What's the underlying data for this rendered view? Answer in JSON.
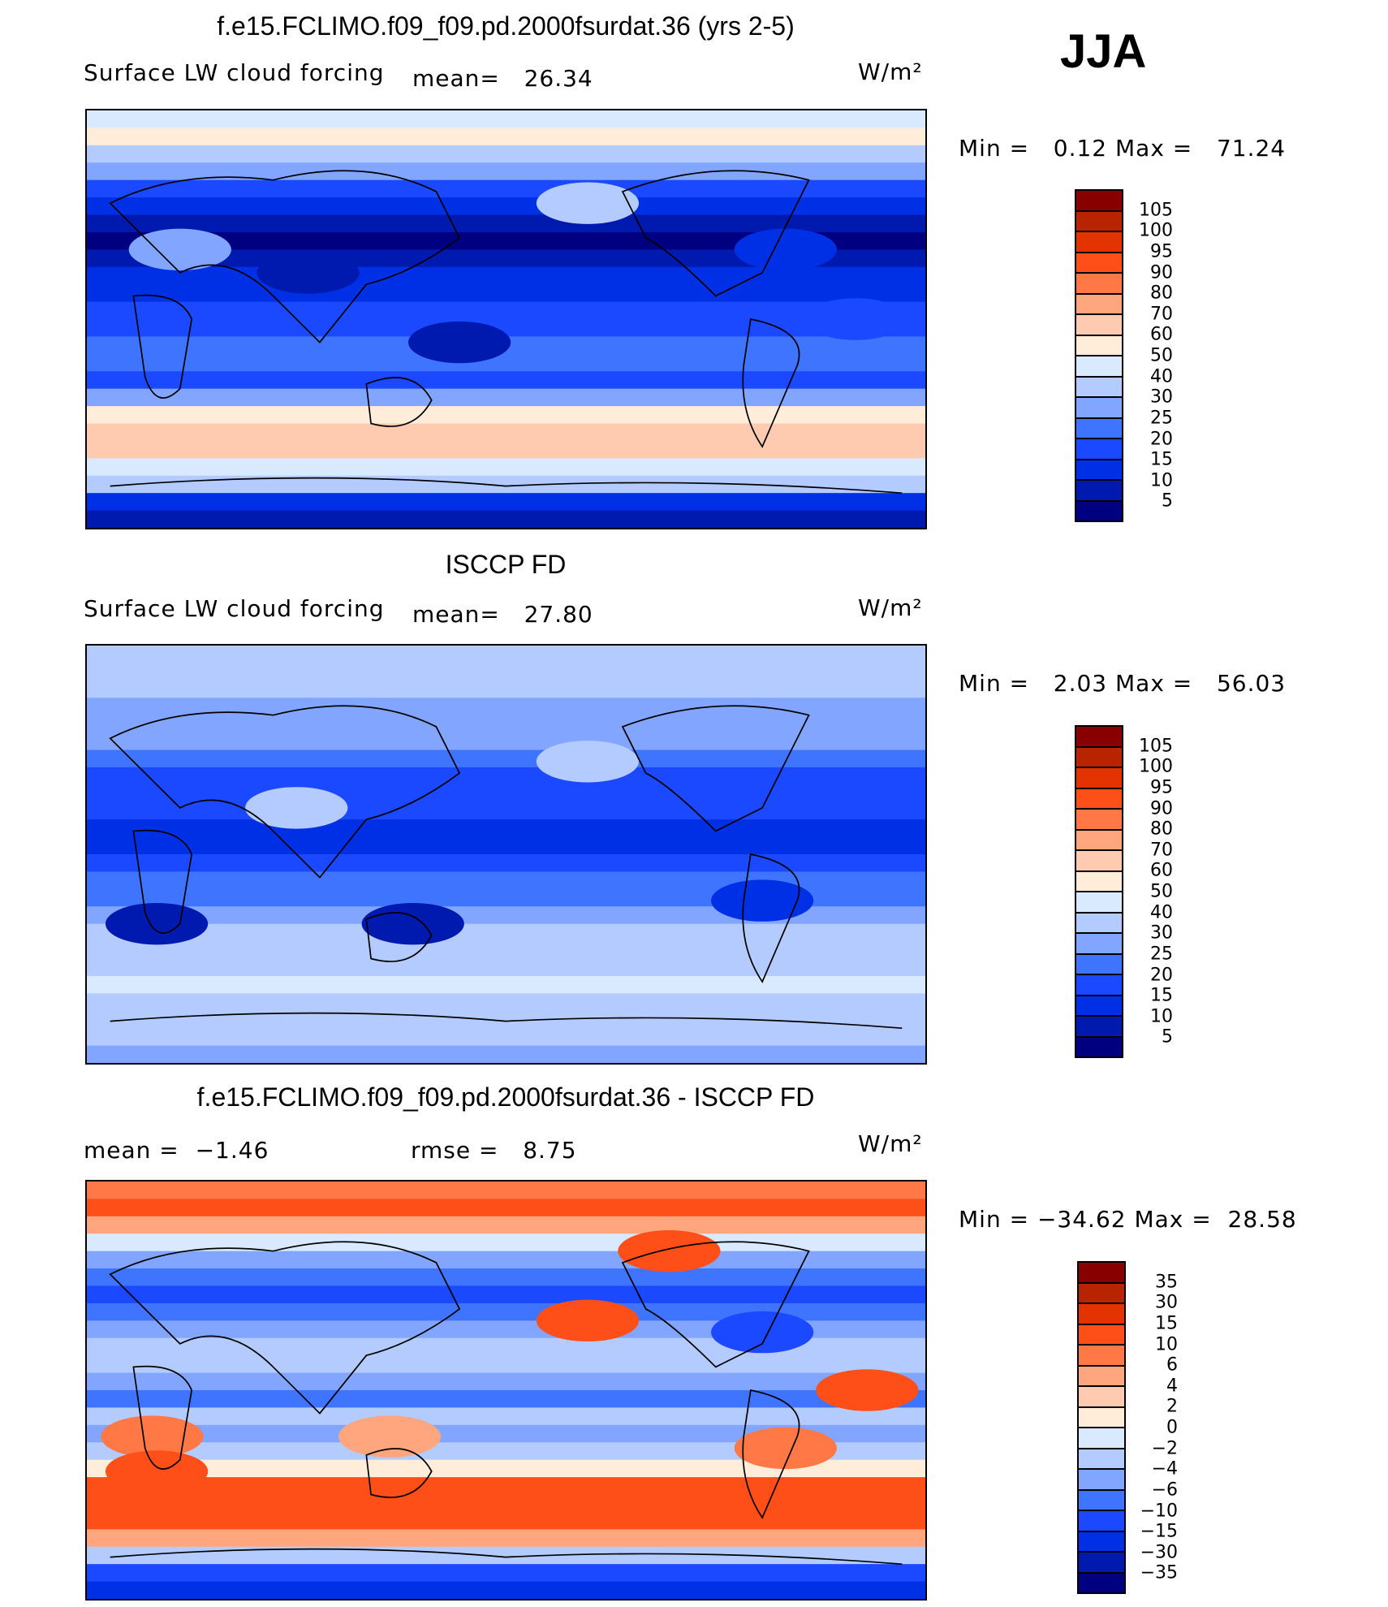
{
  "season": "JJA",
  "units": "W/m²",
  "panels": [
    {
      "title": "f.e15.FCLIMO.f09_f09.pd.2000fsurdat.36 (yrs 2-5)",
      "variable": "Surface LW cloud forcing",
      "mean_label": "mean=",
      "mean": "26.34",
      "min_label": "Min =",
      "min": "0.12",
      "max_label": "Max =",
      "max": "71.24",
      "levels": [
        "105",
        "100",
        "95",
        "90",
        "80",
        "70",
        "60",
        "50",
        "40",
        "30",
        "25",
        "20",
        "15",
        "10",
        "5"
      ]
    },
    {
      "title": "ISCCP FD",
      "variable": "Surface LW cloud forcing",
      "mean_label": "mean=",
      "mean": "27.80",
      "min_label": "Min =",
      "min": "2.03",
      "max_label": "Max =",
      "max": "56.03",
      "levels": [
        "105",
        "100",
        "95",
        "90",
        "80",
        "70",
        "60",
        "50",
        "40",
        "30",
        "25",
        "20",
        "15",
        "10",
        "5"
      ]
    },
    {
      "title": "f.e15.FCLIMO.f09_f09.pd.2000fsurdat.36 - ISCCP FD",
      "mean_label": "mean =",
      "mean": "−1.46",
      "rmse_label": "rmse =",
      "rmse": "8.75",
      "min_label": "Min =",
      "min": "−34.62",
      "max_label": "Max =",
      "max": "28.58",
      "levels": [
        "35",
        "30",
        "15",
        "10",
        "6",
        "4",
        "2",
        "0",
        "−2",
        "−4",
        "−6",
        "−10",
        "−15",
        "−30",
        "−35"
      ]
    }
  ],
  "palette": [
    "#880000",
    "#b82300",
    "#e23300",
    "#ff4f19",
    "#ff7845",
    "#ffa67f",
    "#ffcbb0",
    "#ffecd9",
    "#d9eaff",
    "#b3cbff",
    "#82a6ff",
    "#3f74ff",
    "#1a49ff",
    "#0030e5",
    "#001aaf",
    "#000080"
  ]
}
